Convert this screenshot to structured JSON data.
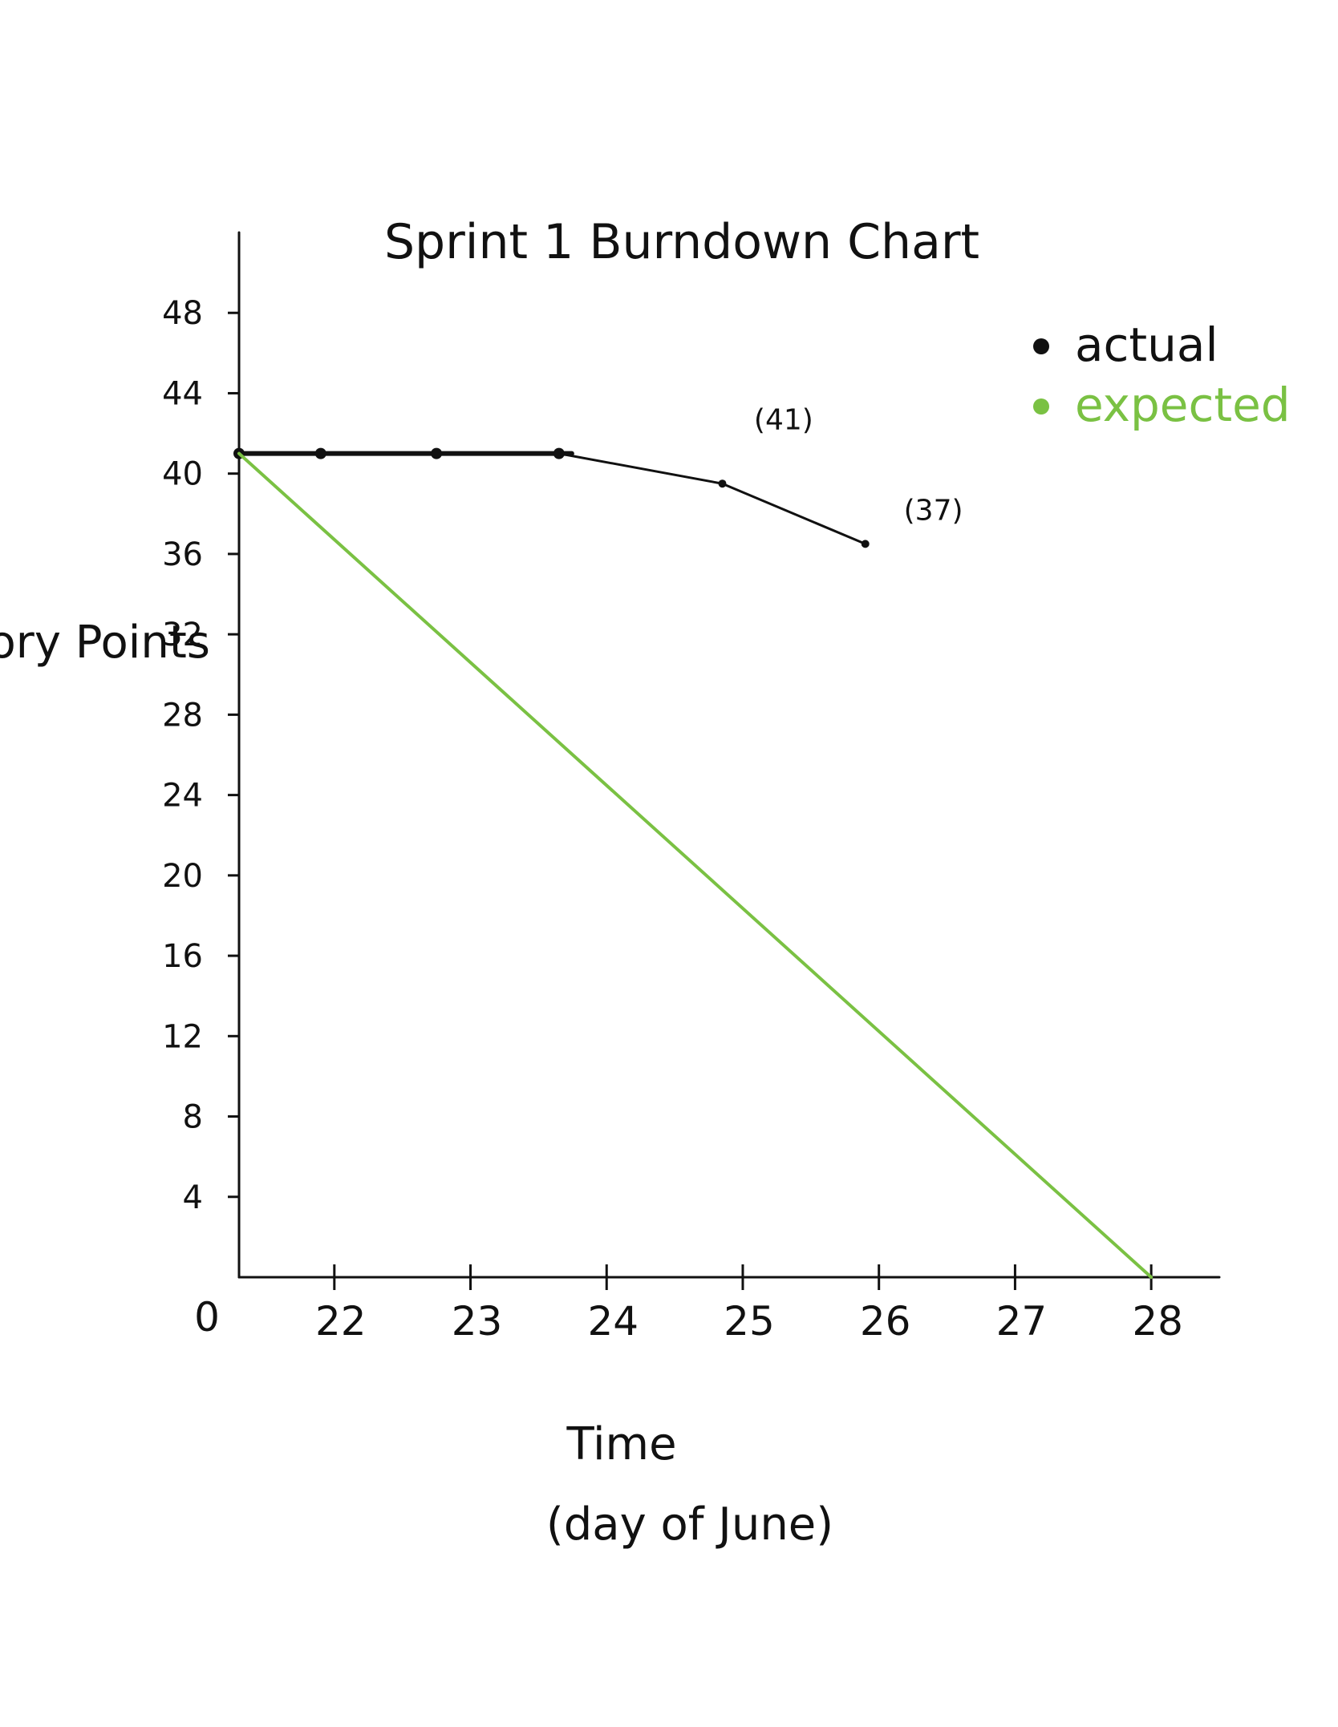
{
  "chart_data": {
    "type": "line",
    "title": "Sprint 1 Burndown Chart",
    "xlabel": "Time",
    "xlabel_sub": "(day of June)",
    "ylabel": "Story Points",
    "xlim": [
      21.3,
      28.5
    ],
    "ylim": [
      0,
      52
    ],
    "origin_label": "0",
    "x_ticks": [
      22,
      23,
      24,
      25,
      26,
      27,
      28
    ],
    "y_ticks": [
      4,
      8,
      12,
      16,
      20,
      24,
      28,
      32,
      36,
      40,
      44,
      48
    ],
    "grid": false,
    "legend_position": "top-right",
    "series": [
      {
        "name": "actual",
        "color": "#111111",
        "x": [
          21.3,
          21.9,
          22.75,
          23.65,
          24.85,
          25.9
        ],
        "y": [
          41,
          41,
          41,
          41,
          39.5,
          36.5
        ]
      },
      {
        "name": "expected",
        "color": "#7ac143",
        "x": [
          21.3,
          28.0
        ],
        "y": [
          41,
          0
        ]
      }
    ],
    "annotations": [
      {
        "text": "(41)",
        "x": 25.3,
        "y": 42.2
      },
      {
        "text": "(37)",
        "x": 26.4,
        "y": 37.7
      }
    ]
  }
}
